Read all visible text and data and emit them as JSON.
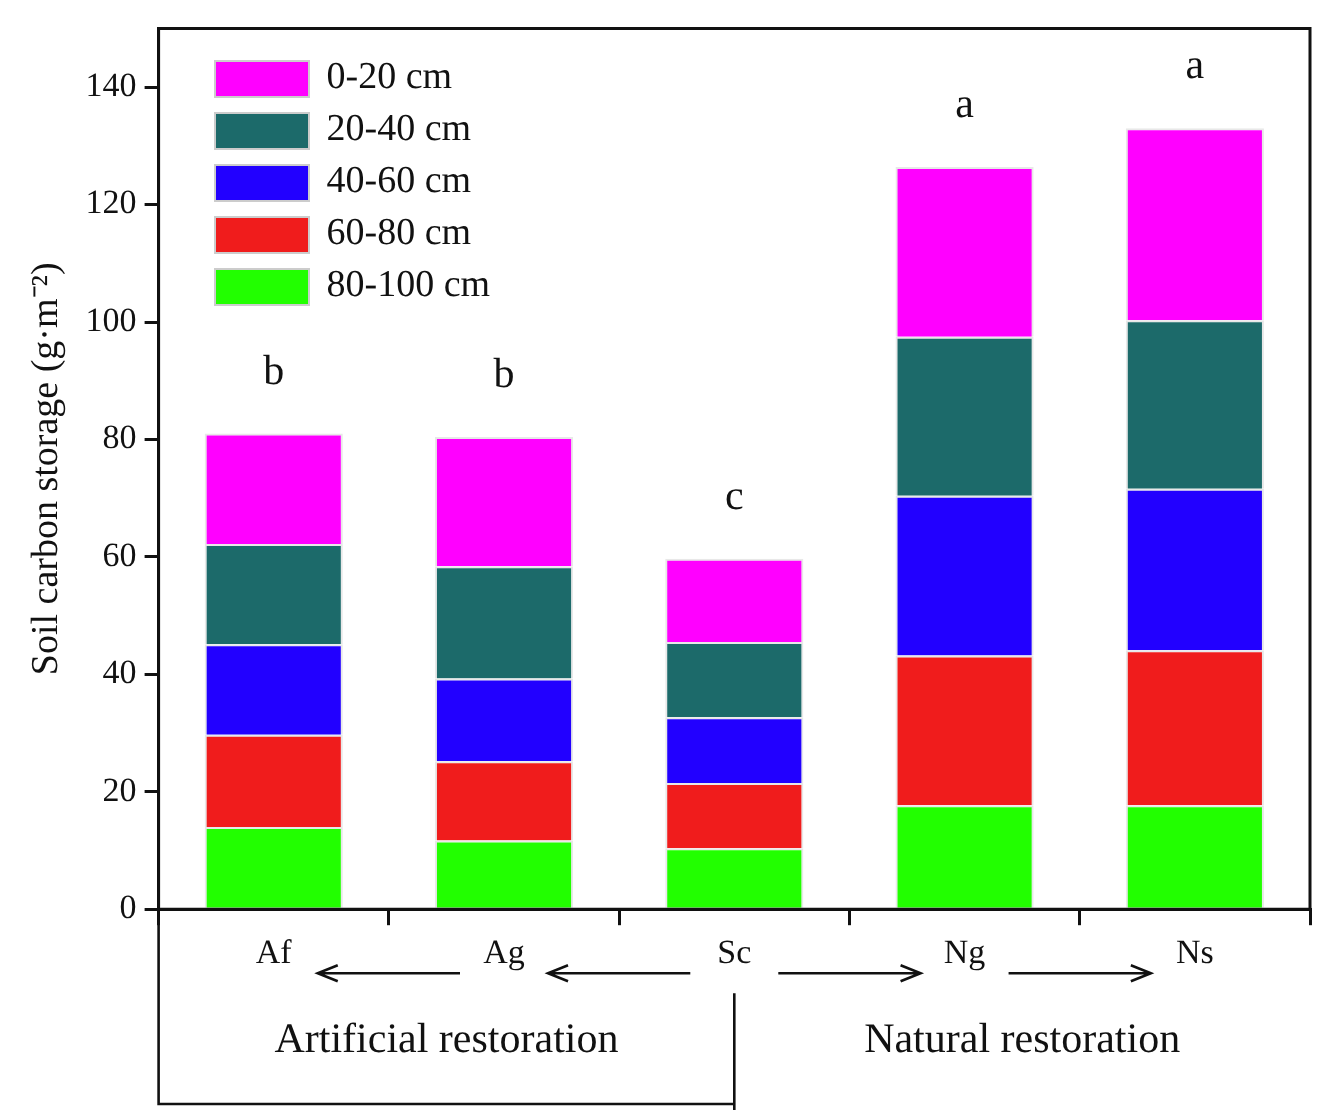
{
  "chart_data": {
    "type": "bar",
    "stacked": true,
    "ylabel": "Soil carbon storage (g·m⁻²)",
    "categories": [
      "Af",
      "Ag",
      "Sc",
      "Ng",
      "Ns"
    ],
    "series": [
      {
        "name": "80-100 cm",
        "color": "#22ff00",
        "values": [
          14.0,
          11.7,
          10.4,
          17.7,
          17.7
        ]
      },
      {
        "name": "60-80 cm",
        "color": "#f01c1c",
        "values": [
          15.7,
          13.5,
          11.1,
          25.5,
          26.4
        ]
      },
      {
        "name": "40-60 cm",
        "color": "#2200ff",
        "values": [
          15.4,
          14.1,
          11.2,
          27.2,
          27.5
        ]
      },
      {
        "name": "20-40 cm",
        "color": "#1c6a6a",
        "values": [
          17.1,
          19.1,
          12.8,
          27.1,
          28.7
        ]
      },
      {
        "name": "0-20 cm",
        "color": "#ff00ff",
        "values": [
          18.8,
          22.0,
          14.2,
          28.9,
          32.7
        ]
      }
    ],
    "ylim": [
      0,
      150
    ],
    "yticks": [
      0,
      20,
      40,
      60,
      80,
      100,
      120,
      140
    ],
    "grid": false,
    "legend": "top left",
    "annotations": [
      {
        "text": "b",
        "x": "Af",
        "y": 81.0
      },
      {
        "text": "b",
        "x": "Ag",
        "y": 80.4
      },
      {
        "text": "c",
        "x": "Sc",
        "y": 59.7
      },
      {
        "text": "a",
        "x": "Ng",
        "y": 126.4
      },
      {
        "text": "a",
        "x": "Ns",
        "y": 133.0
      },
      "Artificial restoration",
      "Natural restoration"
    ]
  }
}
